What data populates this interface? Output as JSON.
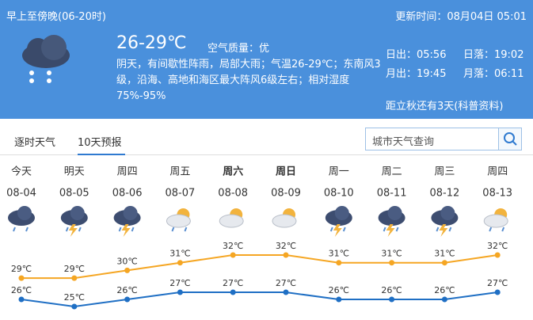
{
  "header": {
    "period": "早上至傍晚(06-20时)",
    "updated": "更新时间：08月04日 05:01",
    "temperature": "26-29℃",
    "air_quality": "空气质量：优",
    "description": "阴天，有间歇性阵雨，局部大雨；气温26-29℃；东南风3级，沿海、高地和海区最大阵风6级左右；相对湿度75%-95%",
    "sunrise": "日出：05:56",
    "sunset": "日落：19:02",
    "moonrise": "月出：19:45",
    "moonset": "月落：06:11",
    "note": "距立秋还有3天(科普资料)"
  },
  "tabs": [
    "逐时天气",
    "10天预报"
  ],
  "search": {
    "placeholder": "城市天气查询"
  },
  "forecast": {
    "days": [
      {
        "name": "今天",
        "date": "08-04"
      },
      {
        "name": "明天",
        "date": "08-05"
      },
      {
        "name": "周四",
        "date": "08-06"
      },
      {
        "name": "周五",
        "date": "08-07"
      },
      {
        "name": "周六",
        "date": "08-08"
      },
      {
        "name": "周日",
        "date": "08-09"
      },
      {
        "name": "周一",
        "date": "08-10"
      },
      {
        "name": "周二",
        "date": "08-11"
      },
      {
        "name": "周三",
        "date": "08-12"
      },
      {
        "name": "周四",
        "date": "08-13"
      }
    ],
    "high": {
      "color": "#f5a623",
      "values": [
        29,
        29,
        30,
        31,
        32,
        32,
        31,
        31,
        31,
        32
      ],
      "value_labels": [
        "29℃",
        "29℃",
        "30℃",
        "31℃",
        "32℃",
        "32℃",
        "31℃",
        "31℃",
        "31℃",
        "32℃"
      ]
    },
    "low": {
      "color": "#1f6fc4",
      "values": [
        26,
        25,
        26,
        27,
        27,
        27,
        26,
        26,
        26,
        27
      ],
      "value_labels": [
        "26℃",
        "25℃",
        "26℃",
        "27℃",
        "27℃",
        "27℃",
        "26℃",
        "26℃",
        "26℃",
        "27℃"
      ]
    }
  }
}
